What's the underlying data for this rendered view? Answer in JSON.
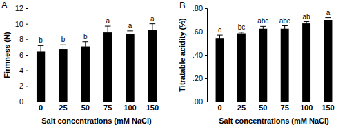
{
  "chart_data": [
    {
      "type": "bar",
      "title": "A",
      "categories": [
        "0",
        "25",
        "50",
        "75",
        "100",
        "150"
      ],
      "values": [
        6.4,
        6.7,
        7.1,
        8.9,
        8.7,
        9.2
      ],
      "errors": [
        0.8,
        0.6,
        0.6,
        0.8,
        0.4,
        0.8
      ],
      "annotations": [
        "b",
        "b",
        "b",
        "a",
        "a",
        "a"
      ],
      "x_label": "Salt concentrations (mM NaCl)",
      "y_label": "Firmness (N)",
      "color": "#000000",
      "ylim": [
        0,
        12
      ],
      "yticks": [
        0,
        2,
        4,
        6,
        8,
        10,
        12
      ]
    },
    {
      "type": "bar",
      "title": "B",
      "categories": [
        "0",
        "25",
        "50",
        "75",
        "100",
        "150"
      ],
      "values": [
        0.54,
        0.585,
        0.625,
        0.625,
        0.67,
        0.7
      ],
      "errors": [
        0.03,
        0.01,
        0.02,
        0.025,
        0.015,
        0.02
      ],
      "annotations": [
        "c",
        "bc",
        "abc",
        "abc",
        "ab",
        "a"
      ],
      "x_label": "Salt concentrations (mM NaCl)",
      "y_label": "Titratable acidity (%)",
      "color": "#000000",
      "ylim": [
        0,
        0.8
      ],
      "yticks": [
        {
          "value": 0,
          "label": ".00"
        },
        {
          "value": 0.2,
          "label": ".20"
        },
        {
          "value": 0.4,
          "label": ".40"
        },
        {
          "value": 0.6,
          "label": ".60"
        },
        {
          "value": 0.8,
          "label": ".80"
        }
      ]
    }
  ]
}
